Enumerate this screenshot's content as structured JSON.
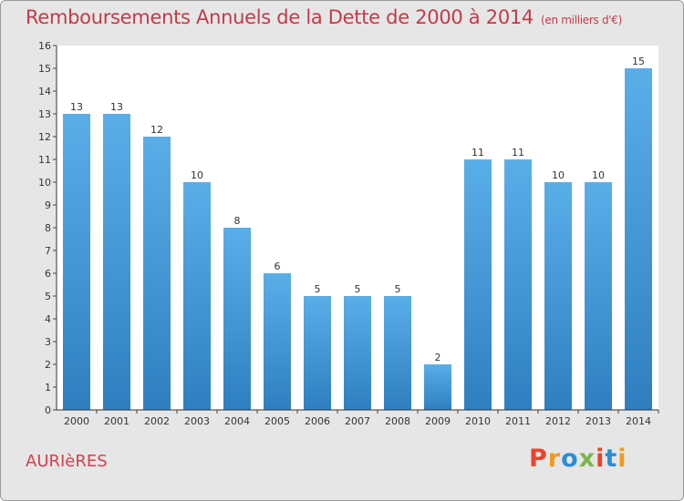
{
  "title": "Remboursements Annuels de la Dette de 2000 à 2014",
  "unit_note": "(en milliers d'€)",
  "city": "AURIèRES",
  "logo": {
    "text": "Proxiti",
    "colors": [
      "#e8452c",
      "#f29a1f",
      "#2a8ed6",
      "#7ab648",
      "#e8452c",
      "#2a8ed6",
      "#f29a1f"
    ]
  },
  "colors": {
    "bar_top": "#5aaee8",
    "bar_bottom": "#2f7fc0",
    "title": "#c23a49",
    "background": "#e6e6e6",
    "plot_bg": "#ffffff"
  },
  "chart_data": {
    "type": "bar",
    "categories": [
      "2000",
      "2001",
      "2002",
      "2003",
      "2004",
      "2005",
      "2006",
      "2007",
      "2008",
      "2009",
      "2010",
      "2011",
      "2012",
      "2013",
      "2014"
    ],
    "values": [
      13,
      13,
      12,
      10,
      8,
      6,
      5,
      5,
      5,
      2,
      11,
      11,
      10,
      10,
      15
    ],
    "data_labels": [
      "13",
      "13",
      "12",
      "10",
      "8",
      "6",
      "5",
      "5",
      "5",
      "2",
      "11",
      "11",
      "10",
      "10",
      "15"
    ],
    "ylim": [
      0,
      16
    ],
    "yticks": [
      0,
      1,
      2,
      3,
      4,
      5,
      6,
      7,
      8,
      9,
      10,
      11,
      12,
      13,
      14,
      15,
      16
    ],
    "grid": false
  }
}
